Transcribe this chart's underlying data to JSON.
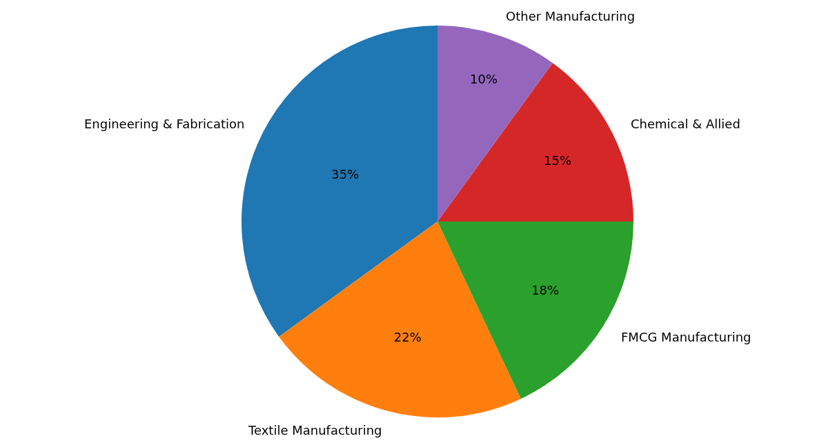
{
  "chart_data": {
    "type": "pie",
    "categories": [
      "Engineering & Fabrication",
      "Textile Manufacturing",
      "FMCG Manufacturing",
      "Chemical & Allied",
      "Other Manufacturing"
    ],
    "values": [
      35,
      22,
      18,
      15,
      10
    ],
    "value_labels": [
      "35%",
      "22%",
      "18%",
      "15%",
      "10%"
    ],
    "colors": [
      "#1f77b4",
      "#ff7f0e",
      "#2ca02c",
      "#d62728",
      "#9467bd"
    ],
    "legend": false
  }
}
